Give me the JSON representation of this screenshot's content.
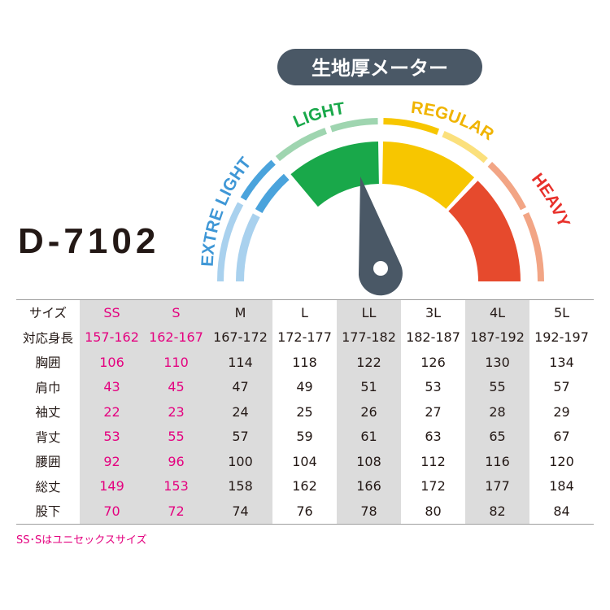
{
  "gauge": {
    "title": "生地厚メーター",
    "labels": {
      "extra_light": "EXTRE LIGHT",
      "light": "LIGHT",
      "regular": "REGULAR",
      "heavy": "HEAVY"
    },
    "pointer": "light",
    "colors": {
      "extra_light": "#4aa3dc",
      "extra_light_pale": "#a9d1ee",
      "light": "#19a84a",
      "light_pale": "#9fd5b0",
      "regular": "#f7c600",
      "regular_pale": "#fbe07c",
      "heavy": "#e64a2d",
      "heavy_pale": "#f2a585",
      "needle": "#4a5866",
      "title_bg": "#4a5866"
    }
  },
  "model": "D-7102",
  "table": {
    "header_label": "サイズ",
    "sizes": [
      "SS",
      "S",
      "M",
      "L",
      "LL",
      "3L",
      "4L",
      "5L"
    ],
    "rows": [
      {
        "label": "対応身長",
        "values": [
          "157-162",
          "162-167",
          "167-172",
          "172-177",
          "177-182",
          "182-187",
          "187-192",
          "192-197"
        ]
      },
      {
        "label": "胸囲",
        "values": [
          "106",
          "110",
          "114",
          "118",
          "122",
          "126",
          "130",
          "134"
        ]
      },
      {
        "label": "肩巾",
        "values": [
          "43",
          "45",
          "47",
          "49",
          "51",
          "53",
          "55",
          "57"
        ]
      },
      {
        "label": "袖丈",
        "values": [
          "22",
          "23",
          "24",
          "25",
          "26",
          "27",
          "28",
          "29"
        ]
      },
      {
        "label": "背丈",
        "values": [
          "53",
          "55",
          "57",
          "59",
          "61",
          "63",
          "65",
          "67"
        ]
      },
      {
        "label": "腰囲",
        "values": [
          "92",
          "96",
          "100",
          "104",
          "108",
          "112",
          "116",
          "120"
        ]
      },
      {
        "label": "総丈",
        "values": [
          "149",
          "153",
          "158",
          "162",
          "166",
          "172",
          "177",
          "184"
        ]
      },
      {
        "label": "股下",
        "values": [
          "70",
          "72",
          "74",
          "76",
          "78",
          "80",
          "82",
          "84"
        ]
      }
    ],
    "shaded_columns": [
      0,
      1,
      2,
      4,
      6
    ],
    "pink_columns": [
      0,
      1
    ]
  },
  "note": "SS･Sはユニセックスサイズ"
}
